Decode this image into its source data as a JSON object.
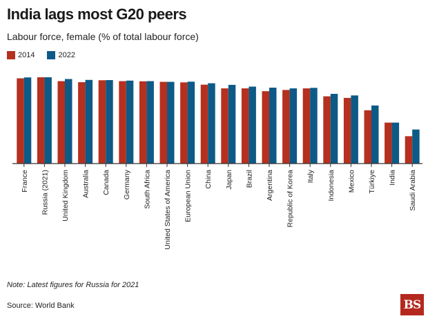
{
  "title": "India lags most G20 peers",
  "subtitle": "Labour force, female (% of total labour force)",
  "note": "Note: Latest figures for Russia for 2021",
  "source": "Source: World Bank",
  "logo": "BS",
  "colors": {
    "y2014": "#b5301f",
    "y2022": "#0d5a87"
  },
  "chart_data": {
    "type": "bar",
    "title": "India lags most G20 peers",
    "ylabel": "Labour force, female (% of total labour force)",
    "xlabel": "",
    "ylim": [
      0,
      52
    ],
    "legend_position": "top-left",
    "categories": [
      "France",
      "Russia (2021)",
      "United Kingdom",
      "Australia",
      "Canada",
      "Germany",
      "South Africa",
      "United States of America",
      "European Union",
      "China",
      "Japan",
      "Brazil",
      "Argentina",
      "Republic of Korea",
      "Italy",
      "Indonesia",
      "Mexico",
      "Türkiye",
      "India",
      "Saudi Arabia"
    ],
    "series": [
      {
        "name": "2014",
        "values": [
          48.3,
          48.9,
          46.7,
          46.1,
          47.2,
          46.7,
          46.6,
          46.3,
          46.0,
          44.7,
          42.6,
          42.6,
          41.0,
          41.7,
          42.6,
          38.1,
          37.2,
          30.2,
          23.2,
          15.5
        ]
      },
      {
        "name": "2022",
        "values": [
          48.8,
          48.9,
          47.9,
          47.4,
          47.3,
          47.0,
          46.7,
          46.3,
          46.4,
          45.5,
          44.6,
          43.6,
          43.0,
          42.6,
          42.9,
          39.5,
          38.6,
          32.9,
          23.2,
          19.3
        ]
      }
    ]
  }
}
